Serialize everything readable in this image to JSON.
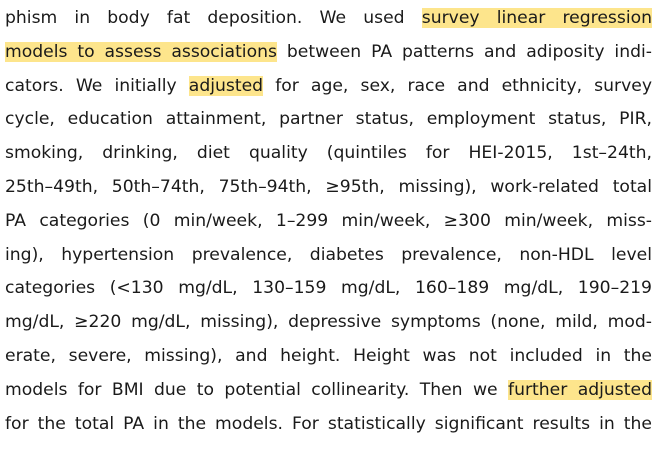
{
  "paragraph": {
    "lines": [
      {
        "segments": [
          {
            "text": "phism in body fat deposition. We used ",
            "highlight": false
          },
          {
            "text": "survey linear regression",
            "highlight": true
          }
        ]
      },
      {
        "segments": [
          {
            "text": "models to assess associations",
            "highlight": true
          },
          {
            "text": " between PA patterns and adiposity indi-",
            "highlight": false
          }
        ]
      },
      {
        "segments": [
          {
            "text": "cators. We initially ",
            "highlight": false
          },
          {
            "text": "adjusted",
            "highlight": true
          },
          {
            "text": " for age, sex, race and ethnicity, survey",
            "highlight": false
          }
        ]
      },
      {
        "segments": [
          {
            "text": "cycle, education attainment, partner status, employment status, PIR,",
            "highlight": false
          }
        ]
      },
      {
        "segments": [
          {
            "text": "smoking, drinking, diet quality (quintiles for HEI-2015, 1st–24th,",
            "highlight": false
          }
        ]
      },
      {
        "segments": [
          {
            "text": "25th–49th, 50th–74th, 75th–94th, ≥95th, missing), work-related total",
            "highlight": false
          }
        ]
      },
      {
        "segments": [
          {
            "text": "PA categories (0 min/week, 1–299 min/week, ≥300 min/week, miss-",
            "highlight": false
          }
        ]
      },
      {
        "segments": [
          {
            "text": "ing), hypertension prevalence, diabetes prevalence, non-HDL level",
            "highlight": false
          }
        ]
      },
      {
        "segments": [
          {
            "text": "categories (<130 mg/dL, 130–159 mg/dL, 160–189 mg/dL, 190–219",
            "highlight": false
          }
        ]
      },
      {
        "segments": [
          {
            "text": "mg/dL, ≥220 mg/dL, missing), depressive symptoms (none, mild, mod-",
            "highlight": false
          }
        ]
      },
      {
        "segments": [
          {
            "text": "erate, severe, missing), and height. Height was not included in the",
            "highlight": false
          }
        ]
      },
      {
        "segments": [
          {
            "text": "models for BMI due to potential collinearity. Then we ",
            "highlight": false
          },
          {
            "text": "further adjusted",
            "highlight": true
          }
        ]
      },
      {
        "segments": [
          {
            "text": "for the total PA in the models. For statistically significant results in the",
            "highlight": false
          }
        ]
      }
    ]
  }
}
